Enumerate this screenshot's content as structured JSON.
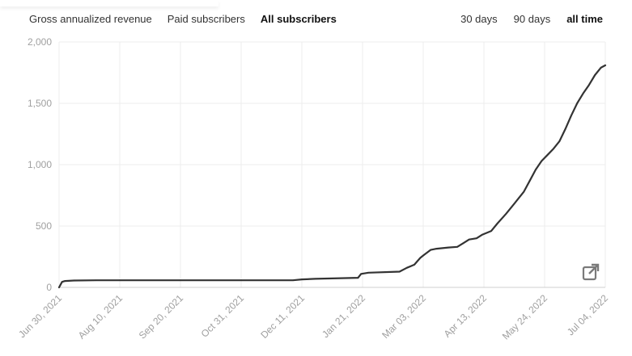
{
  "metric_tabs": [
    {
      "label": "Gross annualized revenue",
      "active": false
    },
    {
      "label": "Paid subscribers",
      "active": false
    },
    {
      "label": "All subscribers",
      "active": true
    }
  ],
  "range_tabs": [
    {
      "label": "30 days",
      "active": false
    },
    {
      "label": "90 days",
      "active": false
    },
    {
      "label": "all time",
      "active": true
    }
  ],
  "export_icon": "external-link-icon",
  "colors": {
    "line": "#333333",
    "grid": "#ececec",
    "tick_text": "#a0a0a0",
    "axis": "#cfcfcf"
  },
  "chart_data": {
    "type": "line",
    "title": "",
    "xlabel": "",
    "ylabel": "",
    "ylim": [
      0,
      2000
    ],
    "yticks": [
      "0",
      "500",
      "1,000",
      "1,500",
      "2,000"
    ],
    "xticks": [
      "Jun 30, 2021",
      "Aug 10, 2021",
      "Sep 20, 2021",
      "Oct 31, 2021",
      "Dec 11, 2021",
      "Jan 21, 2022",
      "Mar 03, 2022",
      "Apr 13, 2022",
      "May 24, 2022",
      "Jul 04, 2022"
    ],
    "grid": true,
    "legend": "none",
    "series": [
      {
        "x": [
          "2021-06-30",
          "2021-07-02",
          "2021-07-04",
          "2021-07-10",
          "2021-07-25",
          "2021-08-10",
          "2021-09-20",
          "2021-10-31",
          "2021-12-05",
          "2021-12-11",
          "2021-12-20",
          "2022-01-18",
          "2022-01-20",
          "2022-01-25",
          "2022-02-15",
          "2022-02-20",
          "2022-02-25",
          "2022-03-01",
          "2022-03-03",
          "2022-03-08",
          "2022-03-12",
          "2022-03-20",
          "2022-03-26",
          "2022-03-30",
          "2022-04-03",
          "2022-04-08",
          "2022-04-12",
          "2022-04-18",
          "2022-04-22",
          "2022-04-28",
          "2022-05-02",
          "2022-05-06",
          "2022-05-10",
          "2022-05-14",
          "2022-05-18",
          "2022-05-22",
          "2022-05-26",
          "2022-05-30",
          "2022-06-03",
          "2022-06-07",
          "2022-06-11",
          "2022-06-15",
          "2022-06-19",
          "2022-06-23",
          "2022-06-27",
          "2022-07-01",
          "2022-07-04"
        ],
        "values": [
          0,
          45,
          52,
          56,
          58,
          58,
          58,
          58,
          58,
          65,
          70,
          78,
          110,
          120,
          128,
          160,
          185,
          240,
          260,
          305,
          315,
          325,
          330,
          360,
          390,
          400,
          430,
          460,
          520,
          600,
          660,
          720,
          780,
          870,
          960,
          1030,
          1080,
          1130,
          1190,
          1290,
          1400,
          1500,
          1580,
          1650,
          1730,
          1790,
          1810
        ]
      }
    ]
  }
}
